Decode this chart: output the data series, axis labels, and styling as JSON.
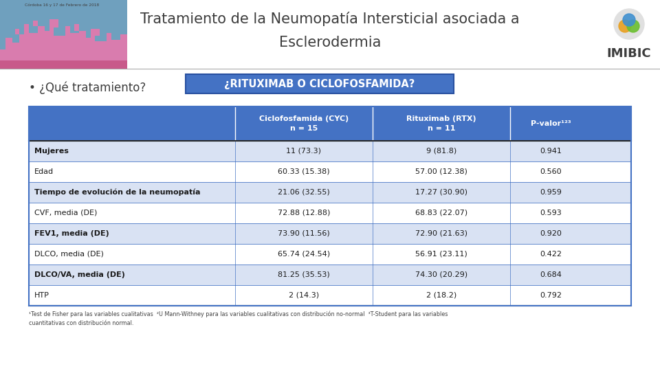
{
  "title_line1": "Tratamiento de la Neumopatía Intersticial asociada a",
  "title_line2": "Esclerodermia",
  "subtitle_bullet": "• ¿Qué tratamiento?",
  "button_text": "¿RITUXIMAB O CICLOFOSFAMIDA?",
  "header_col1": "Ciclofosfamida (CYC)\nn = 15",
  "header_col2": "Rituximab (RTX)\nn = 11",
  "header_col3": "P-valor¹²³",
  "table_rows": [
    [
      "Mujeres",
      "11 (73.3)",
      "9 (81.8)",
      "0.941"
    ],
    [
      "Edad",
      "60.33 (15.38)",
      "57.00 (12.38)",
      "0.560"
    ],
    [
      "Tiempo de evolución de la neumopatía",
      "21.06 (32.55)",
      "17.27 (30.90)",
      "0.959"
    ],
    [
      "CVF, media (DE)",
      "72.88 (12.88)",
      "68.83 (22.07)",
      "0.593"
    ],
    [
      "FEV1, media (DE)",
      "73.90 (11.56)",
      "72.90 (21.63)",
      "0.920"
    ],
    [
      "DLCO, media (DE)",
      "65.74 (24.54)",
      "56.91 (23.11)",
      "0.422"
    ],
    [
      "DLCO/VA, media (DE)",
      "81.25 (35.53)",
      "74.30 (20.29)",
      "0.684"
    ],
    [
      "HTP",
      "2 (14.3)",
      "2 (18.2)",
      "0.792"
    ]
  ],
  "footnote": "¹Test de Fisher para las variables cualitativas  ²U Mann-Withney para las variables cualitativas con distribución no-normal  ³T-Student para las variables\ncuantitativas con distribución normal.",
  "header_bg": "#4472C4",
  "header_fg": "#FFFFFF",
  "row_bg_shaded": "#D9E2F3",
  "row_bg_white": "#FFFFFF",
  "shaded_rows": [
    0,
    2,
    4,
    6
  ],
  "bold_rows": [
    0,
    2,
    4,
    6
  ],
  "table_border_color": "#4472C4",
  "button_bg": "#4472C4",
  "button_fg": "#FFFFFF",
  "bg_color": "#FFFFFF",
  "title_color": "#3C3C3C",
  "bullet_color": "#3C3C3C",
  "banner_bg": "#6FA0BE",
  "banner_pink": "#E07AAE",
  "banner_pink_dark": "#C85A8A",
  "imibic_text_color": "#3C3C3C",
  "footnote_color": "#404040",
  "divider_color": "#AAAAAA"
}
